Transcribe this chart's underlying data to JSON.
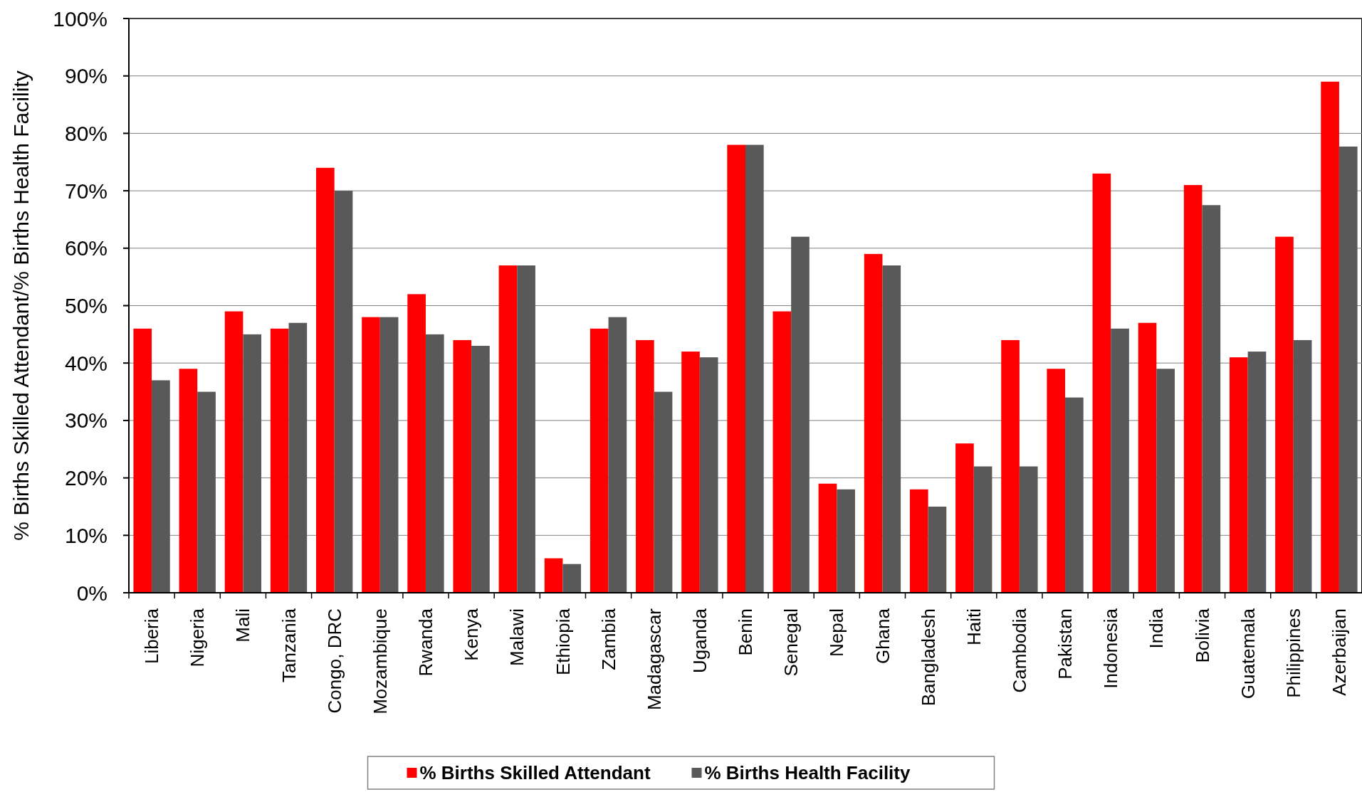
{
  "chart_data": {
    "type": "bar",
    "ylabel": "% Births Skilled Attendant/% Births Health Facility",
    "categories": [
      "Liberia",
      "Nigeria",
      "Mali",
      "Tanzania",
      "Congo, DRC",
      "Mozambique",
      "Rwanda",
      "Kenya",
      "Malawi",
      "Ethiopia",
      "Zambia",
      "Madagascar",
      "Uganda",
      "Benin",
      "Senegal",
      "Nepal",
      "Ghana",
      "Bangladesh",
      "Haiti",
      "Cambodia",
      "Pakistan",
      "Indonesia",
      "India",
      "Bolivia",
      "Guatemala",
      "Philippines",
      "Azerbaijan"
    ],
    "series": [
      {
        "name": "% Births Skilled Attendant",
        "color": "#ff0000",
        "values": [
          46,
          39,
          49,
          46,
          74,
          48,
          52,
          44,
          57,
          6,
          46,
          44,
          42,
          78,
          49,
          19,
          59,
          18,
          26,
          44,
          39,
          73,
          47,
          71,
          41,
          62,
          89
        ]
      },
      {
        "name": "% Births Health Facility",
        "color": "#595959",
        "values": [
          37,
          35,
          45,
          47,
          70,
          48,
          45,
          43,
          57,
          5,
          48,
          35,
          41,
          78,
          62,
          18,
          57,
          15,
          22,
          22,
          34,
          46,
          39,
          67.5,
          42,
          44,
          77.7
        ]
      }
    ],
    "ylim": [
      0,
      100
    ],
    "yticks": [
      {
        "value": 0,
        "label": "0%"
      },
      {
        "value": 10,
        "label": "10%"
      },
      {
        "value": 20,
        "label": "20%"
      },
      {
        "value": 30,
        "label": "30%"
      },
      {
        "value": 40,
        "label": "40%"
      },
      {
        "value": 50,
        "label": "50%"
      },
      {
        "value": 60,
        "label": "60%"
      },
      {
        "value": 70,
        "label": "70%"
      },
      {
        "value": 80,
        "label": "80%"
      },
      {
        "value": 90,
        "label": "90%"
      },
      {
        "value": 100,
        "label": "100%"
      }
    ],
    "grid": "y",
    "legend": "bottom"
  }
}
